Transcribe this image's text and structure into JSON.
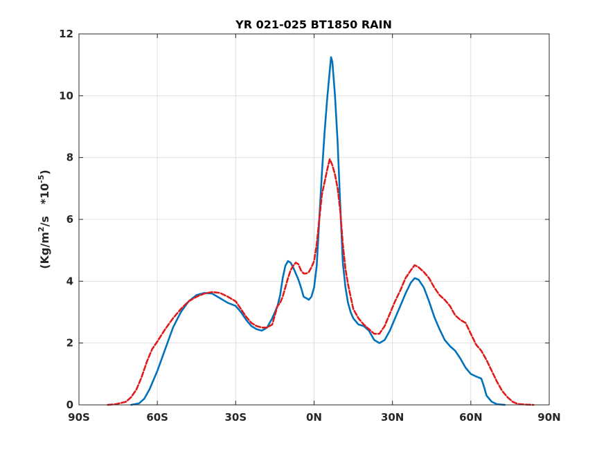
{
  "chart_data": {
    "type": "line",
    "title": "YR 021-025 BT1850 RAIN",
    "ylabel": {
      "prefix": "(Kg/m",
      "exp1": "2",
      "middle": "/s   *10",
      "exp2": "-5",
      "suffix": ")"
    },
    "xlabel": "",
    "xlim": [
      -90,
      90
    ],
    "ylim": [
      0,
      12
    ],
    "grid": true,
    "xticks": [
      {
        "value": -90,
        "label": "90S"
      },
      {
        "value": -60,
        "label": "60S"
      },
      {
        "value": -30,
        "label": "30S"
      },
      {
        "value": 0,
        "label": "0N"
      },
      {
        "value": 30,
        "label": "30N"
      },
      {
        "value": 60,
        "label": "60N"
      },
      {
        "value": 90,
        "label": "90N"
      }
    ],
    "yticks": [
      {
        "value": 0,
        "label": "0"
      },
      {
        "value": 2,
        "label": "2"
      },
      {
        "value": 4,
        "label": "4"
      },
      {
        "value": 6,
        "label": "6"
      },
      {
        "value": 8,
        "label": "8"
      },
      {
        "value": 10,
        "label": "10"
      },
      {
        "value": 12,
        "label": "12"
      }
    ],
    "series": [
      {
        "color": "#0072BD",
        "style": "solid",
        "points": [
          [
            -70,
            0
          ],
          [
            -67,
            0.05
          ],
          [
            -65,
            0.2
          ],
          [
            -63,
            0.5
          ],
          [
            -60,
            1.1
          ],
          [
            -57,
            1.8
          ],
          [
            -54,
            2.5
          ],
          [
            -51,
            3.0
          ],
          [
            -48,
            3.35
          ],
          [
            -45,
            3.55
          ],
          [
            -42,
            3.62
          ],
          [
            -39,
            3.6
          ],
          [
            -36,
            3.45
          ],
          [
            -33,
            3.3
          ],
          [
            -30,
            3.2
          ],
          [
            -28,
            3.0
          ],
          [
            -26,
            2.75
          ],
          [
            -24,
            2.55
          ],
          [
            -22,
            2.45
          ],
          [
            -20,
            2.4
          ],
          [
            -18,
            2.5
          ],
          [
            -16,
            2.8
          ],
          [
            -14,
            3.2
          ],
          [
            -13,
            3.55
          ],
          [
            -12,
            4.1
          ],
          [
            -11,
            4.5
          ],
          [
            -10,
            4.65
          ],
          [
            -9,
            4.6
          ],
          [
            -8,
            4.45
          ],
          [
            -7,
            4.25
          ],
          [
            -6,
            4.05
          ],
          [
            -5,
            3.8
          ],
          [
            -4,
            3.5
          ],
          [
            -3,
            3.45
          ],
          [
            -2,
            3.4
          ],
          [
            -1,
            3.5
          ],
          [
            0,
            3.8
          ],
          [
            1,
            4.5
          ],
          [
            2,
            6.0
          ],
          [
            3,
            7.5
          ],
          [
            4,
            8.8
          ],
          [
            5,
            9.9
          ],
          [
            6,
            10.8
          ],
          [
            6.5,
            11.25
          ],
          [
            7,
            11.1
          ],
          [
            8,
            10.0
          ],
          [
            9,
            8.5
          ],
          [
            10,
            6.5
          ],
          [
            11,
            4.6
          ],
          [
            12,
            3.8
          ],
          [
            13,
            3.3
          ],
          [
            14,
            3.0
          ],
          [
            15,
            2.8
          ],
          [
            17,
            2.6
          ],
          [
            19,
            2.55
          ],
          [
            21,
            2.4
          ],
          [
            23,
            2.1
          ],
          [
            25,
            2.0
          ],
          [
            27,
            2.1
          ],
          [
            29,
            2.4
          ],
          [
            31,
            2.8
          ],
          [
            33,
            3.2
          ],
          [
            35,
            3.6
          ],
          [
            37,
            3.95
          ],
          [
            38.5,
            4.1
          ],
          [
            40,
            4.05
          ],
          [
            42,
            3.8
          ],
          [
            44,
            3.35
          ],
          [
            46,
            2.85
          ],
          [
            48,
            2.45
          ],
          [
            50,
            2.1
          ],
          [
            52,
            1.9
          ],
          [
            54,
            1.75
          ],
          [
            56,
            1.5
          ],
          [
            58,
            1.2
          ],
          [
            60,
            1.0
          ],
          [
            62,
            0.92
          ],
          [
            64,
            0.85
          ],
          [
            65,
            0.6
          ],
          [
            66,
            0.3
          ],
          [
            68,
            0.1
          ],
          [
            70,
            0.02
          ],
          [
            73,
            0
          ]
        ]
      },
      {
        "color": "#E01A1A",
        "style": "dashed",
        "points": [
          [
            -79,
            0
          ],
          [
            -76,
            0.02
          ],
          [
            -72,
            0.1
          ],
          [
            -70,
            0.25
          ],
          [
            -68,
            0.5
          ],
          [
            -66,
            0.9
          ],
          [
            -64,
            1.4
          ],
          [
            -62,
            1.8
          ],
          [
            -60,
            2.05
          ],
          [
            -57,
            2.45
          ],
          [
            -54,
            2.8
          ],
          [
            -51,
            3.1
          ],
          [
            -48,
            3.35
          ],
          [
            -45,
            3.5
          ],
          [
            -42,
            3.6
          ],
          [
            -39,
            3.65
          ],
          [
            -36,
            3.62
          ],
          [
            -33,
            3.5
          ],
          [
            -30,
            3.35
          ],
          [
            -28,
            3.1
          ],
          [
            -26,
            2.85
          ],
          [
            -24,
            2.65
          ],
          [
            -22,
            2.55
          ],
          [
            -20,
            2.5
          ],
          [
            -18,
            2.5
          ],
          [
            -16,
            2.6
          ],
          [
            -15,
            2.9
          ],
          [
            -14,
            3.2
          ],
          [
            -13,
            3.3
          ],
          [
            -12,
            3.5
          ],
          [
            -11,
            3.8
          ],
          [
            -10,
            4.1
          ],
          [
            -9,
            4.35
          ],
          [
            -8,
            4.5
          ],
          [
            -7,
            4.6
          ],
          [
            -6,
            4.55
          ],
          [
            -5,
            4.35
          ],
          [
            -4,
            4.25
          ],
          [
            -3,
            4.25
          ],
          [
            -2,
            4.3
          ],
          [
            -1,
            4.45
          ],
          [
            0,
            4.65
          ],
          [
            1,
            5.2
          ],
          [
            2,
            6.0
          ],
          [
            3,
            6.8
          ],
          [
            4,
            7.2
          ],
          [
            5,
            7.6
          ],
          [
            6,
            7.95
          ],
          [
            7,
            7.75
          ],
          [
            8,
            7.45
          ],
          [
            9,
            7.0
          ],
          [
            10,
            6.3
          ],
          [
            11,
            5.2
          ],
          [
            12,
            4.4
          ],
          [
            13,
            3.9
          ],
          [
            14,
            3.5
          ],
          [
            15,
            3.1
          ],
          [
            17,
            2.8
          ],
          [
            19,
            2.6
          ],
          [
            21,
            2.45
          ],
          [
            23,
            2.3
          ],
          [
            25,
            2.3
          ],
          [
            27,
            2.55
          ],
          [
            29,
            2.95
          ],
          [
            31,
            3.35
          ],
          [
            33,
            3.7
          ],
          [
            35,
            4.1
          ],
          [
            37,
            4.35
          ],
          [
            38.5,
            4.52
          ],
          [
            40,
            4.45
          ],
          [
            42,
            4.3
          ],
          [
            44,
            4.1
          ],
          [
            46,
            3.8
          ],
          [
            48,
            3.55
          ],
          [
            50,
            3.4
          ],
          [
            52,
            3.2
          ],
          [
            54,
            2.9
          ],
          [
            56,
            2.75
          ],
          [
            58,
            2.65
          ],
          [
            60,
            2.3
          ],
          [
            62,
            1.95
          ],
          [
            64,
            1.75
          ],
          [
            66,
            1.45
          ],
          [
            68,
            1.1
          ],
          [
            70,
            0.75
          ],
          [
            72,
            0.45
          ],
          [
            74,
            0.25
          ],
          [
            76,
            0.1
          ],
          [
            78,
            0.03
          ],
          [
            81,
            0.01
          ],
          [
            84,
            0
          ]
        ]
      }
    ]
  }
}
